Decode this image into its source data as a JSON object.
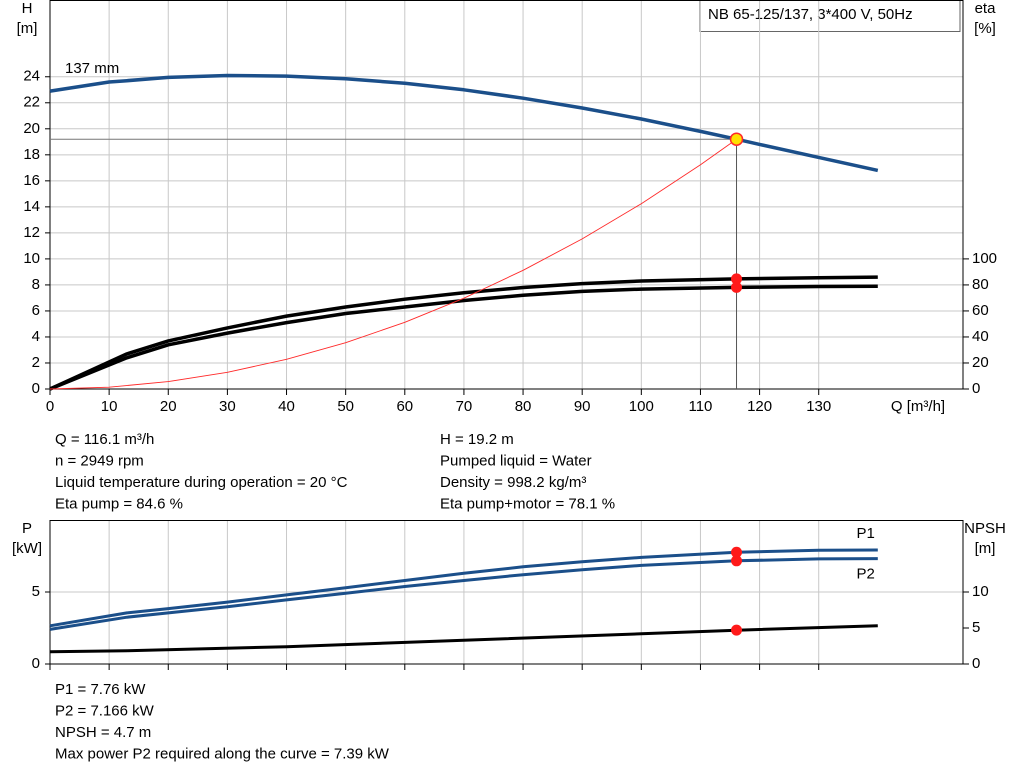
{
  "title_box": "NB 65-125/137, 3*400 V, 50Hz",
  "chart_data": [
    {
      "type": "line",
      "x_label": "Q [m³/h]",
      "y_label": [
        "H",
        "[m]"
      ],
      "y2_label": [
        "eta",
        "[%]"
      ],
      "xlim": [
        0,
        154.4
      ],
      "xticks": [
        0,
        10,
        20,
        30,
        40,
        50,
        60,
        70,
        80,
        90,
        100,
        110,
        120,
        130
      ],
      "ylim": [
        0,
        29.9
      ],
      "yticks": [
        0,
        2,
        4,
        6,
        8,
        10,
        12,
        14,
        16,
        18,
        20,
        22,
        24
      ],
      "y2lim": [
        0,
        299
      ],
      "y2ticks": [
        0,
        20,
        40,
        60,
        80,
        100
      ],
      "grid": true,
      "series": [
        {
          "name": "137 mm",
          "color": "#1b4f8a",
          "x": [
            0,
            10,
            13,
            20,
            30,
            40,
            50,
            60,
            70,
            80,
            90,
            100,
            110,
            116.1,
            120,
            130,
            140
          ],
          "values": [
            22.9,
            23.6,
            23.7,
            23.95,
            24.1,
            24.05,
            23.85,
            23.5,
            23.0,
            22.35,
            21.6,
            20.75,
            19.8,
            19.2,
            18.8,
            17.8,
            16.8
          ]
        },
        {
          "color": "#000000",
          "axis": "y2",
          "x": [
            0,
            13,
            20,
            30,
            40,
            50,
            60,
            70,
            80,
            90,
            100,
            116.1,
            130,
            140
          ],
          "values": [
            0,
            27,
            37,
            47,
            56,
            63,
            69,
            74,
            78,
            81,
            83,
            84.6,
            85.5,
            86
          ]
        },
        {
          "color": "#000000",
          "axis": "y2",
          "x": [
            0,
            13,
            20,
            30,
            40,
            50,
            60,
            70,
            80,
            90,
            100,
            116.1,
            130,
            140
          ],
          "values": [
            0,
            24,
            34,
            43,
            51,
            58,
            63,
            68,
            72,
            75,
            76.8,
            78.1,
            78.8,
            79
          ]
        },
        {
          "color": "#ff2a2a",
          "x": [
            0,
            10,
            20,
            30,
            40,
            50,
            60,
            70,
            80,
            90,
            100,
            110,
            116.1
          ],
          "values": [
            0,
            0.14,
            0.57,
            1.28,
            2.28,
            3.56,
            5.13,
            6.98,
            9.12,
            11.54,
            14.24,
            17.23,
            19.2
          ]
        }
      ],
      "operating_point": {
        "x": 116.1,
        "y": 19.2,
        "eta_pump": 84.6,
        "eta_total": 78.1
      }
    },
    {
      "type": "line",
      "y_label": [
        "P",
        "[kW]"
      ],
      "y2_label": [
        "NPSH",
        "[m]"
      ],
      "xlim": [
        0,
        154.4
      ],
      "xticks": [
        0,
        10,
        20,
        30,
        40,
        50,
        60,
        70,
        80,
        90,
        100,
        110,
        120,
        130
      ],
      "ylim": [
        0,
        10
      ],
      "yticks": [
        0,
        5
      ],
      "y2lim": [
        0,
        20
      ],
      "y2ticks": [
        0,
        5,
        10
      ],
      "grid": true,
      "series": [
        {
          "name": "P1",
          "color": "#1b4f8a",
          "x": [
            0,
            13,
            20,
            30,
            40,
            50,
            60,
            70,
            80,
            90,
            100,
            116.1,
            130,
            140
          ],
          "values": [
            2.65,
            3.55,
            3.85,
            4.3,
            4.8,
            5.3,
            5.8,
            6.3,
            6.75,
            7.1,
            7.4,
            7.76,
            7.9,
            7.92
          ]
        },
        {
          "name": "P2",
          "color": "#1b4f8a",
          "x": [
            0,
            13,
            20,
            30,
            40,
            50,
            60,
            70,
            80,
            90,
            100,
            116.1,
            130,
            140
          ],
          "values": [
            2.4,
            3.25,
            3.55,
            3.98,
            4.45,
            4.92,
            5.38,
            5.8,
            6.2,
            6.55,
            6.85,
            7.166,
            7.3,
            7.32
          ]
        },
        {
          "color": "#000000",
          "axis": "y2",
          "x": [
            0,
            13,
            40,
            70,
            100,
            116.1,
            140
          ],
          "values": [
            1.7,
            1.85,
            2.4,
            3.3,
            4.2,
            4.7,
            5.3
          ]
        }
      ],
      "operating_point": {
        "x": 116.1,
        "p1": 7.76,
        "p2": 7.166,
        "npsh": 4.7
      }
    }
  ],
  "info_top": {
    "left": [
      "Q = 116.1 m³/h",
      "n = 2949 rpm",
      "Liquid temperature during operation = 20 °C",
      "Eta pump = 84.6 %"
    ],
    "right": [
      "H = 19.2 m",
      "Pumped liquid = Water",
      "Density = 998.2 kg/m³",
      "Eta pump+motor = 78.1 %"
    ]
  },
  "info_bottom": [
    "P1 = 7.76 kW",
    "P2 = 7.166 kW",
    "NPSH = 4.7 m",
    "Max power P2 required along the curve = 7.39 kW"
  ]
}
